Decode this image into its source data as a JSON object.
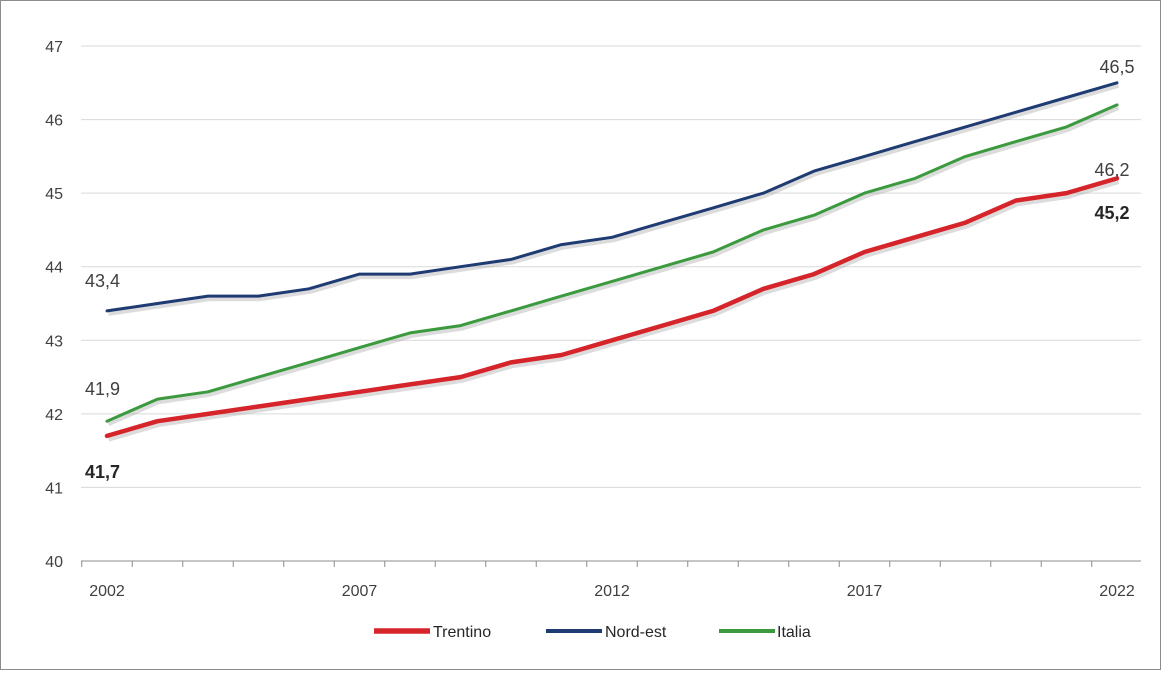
{
  "chart_data": {
    "type": "line",
    "title": "",
    "xlabel": "",
    "ylabel": "",
    "ylim": [
      40,
      47
    ],
    "yticks": [
      "40",
      "41",
      "42",
      "43",
      "44",
      "45",
      "46",
      "47"
    ],
    "x": [
      2002,
      2003,
      2004,
      2005,
      2006,
      2007,
      2008,
      2009,
      2010,
      2011,
      2012,
      2013,
      2014,
      2015,
      2016,
      2017,
      2018,
      2019,
      2020,
      2021,
      2022
    ],
    "xtick_labels": [
      "2002",
      "2007",
      "2012",
      "2017",
      "2022"
    ],
    "grid": "horizontal",
    "legend_position": "bottom",
    "series": [
      {
        "name": "Trentino",
        "color": "#d6242b",
        "values": [
          41.7,
          41.9,
          42.0,
          42.1,
          42.2,
          42.3,
          42.4,
          42.5,
          42.7,
          42.8,
          43.0,
          43.2,
          43.4,
          43.7,
          43.9,
          44.2,
          44.4,
          44.6,
          44.9,
          45.0,
          45.2
        ],
        "labels": {
          "start": "41,7",
          "end": "45,2"
        }
      },
      {
        "name": "Nord-est",
        "color": "#1f3b73",
        "values": [
          43.4,
          43.5,
          43.6,
          43.6,
          43.7,
          43.9,
          43.9,
          44.0,
          44.1,
          44.3,
          44.4,
          44.6,
          44.8,
          45.0,
          45.3,
          45.5,
          45.7,
          45.9,
          46.1,
          46.3,
          46.5
        ],
        "labels": {
          "start": "43,4",
          "end": "46,5"
        }
      },
      {
        "name": "Italia",
        "color": "#3b9a3e",
        "values": [
          41.9,
          42.2,
          42.3,
          42.5,
          42.7,
          42.9,
          43.1,
          43.2,
          43.4,
          43.6,
          43.8,
          44.0,
          44.2,
          44.5,
          44.7,
          45.0,
          45.2,
          45.5,
          45.7,
          45.9,
          46.2
        ],
        "labels": {
          "start": "41,9",
          "end": "46,2"
        }
      }
    ]
  }
}
